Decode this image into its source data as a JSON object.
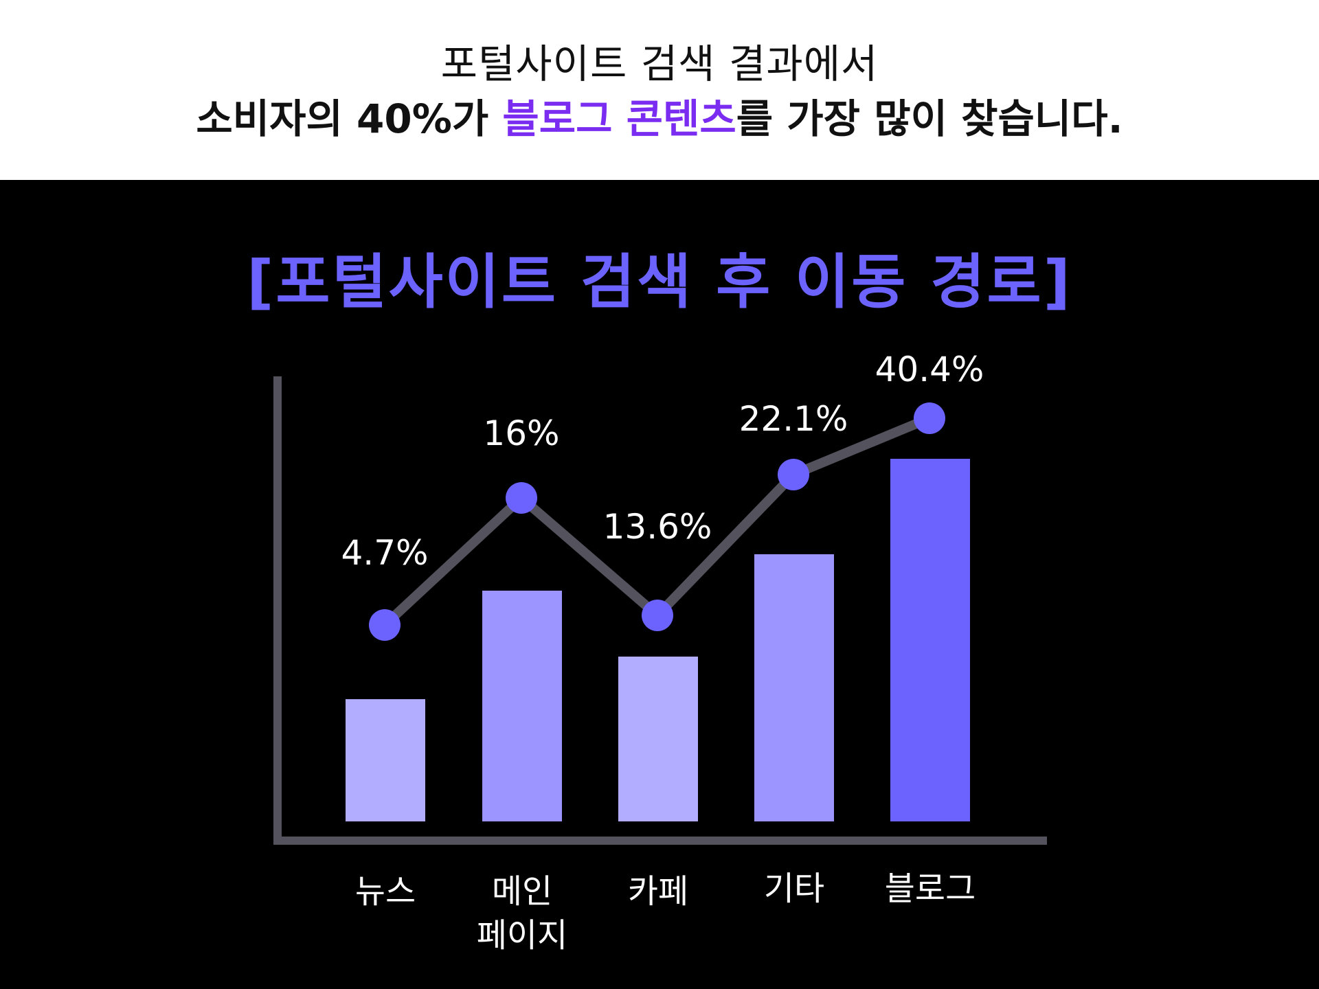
{
  "headline": {
    "line1": "포털사이트 검색 결과에서",
    "line2_pre": "소비자의 40%가 ",
    "line2_highlight": "블로그 콘텐츠",
    "line2_post": "를 가장 많이 찾습니다."
  },
  "colors": {
    "highlight": "#7a2cf0",
    "title": "#6c63ff",
    "bar_light": "#b3adff",
    "bar_mid": "#9c94ff",
    "bar_strong": "#6c63ff",
    "line": "#54525d",
    "point": "#6c63ff",
    "axis": "#54525d"
  },
  "chart_data": {
    "type": "bar+line",
    "title": "[포털사이트 검색 후 이동 경로]",
    "categories": [
      "뉴스",
      "메인\n페이지",
      "카페",
      "기타",
      "블로그"
    ],
    "category_lines": [
      [
        "뉴스"
      ],
      [
        "메인",
        "페이지"
      ],
      [
        "카페"
      ],
      [
        "기타"
      ],
      [
        "블로그"
      ]
    ],
    "values": [
      4.7,
      16,
      13.6,
      22.1,
      40.4
    ],
    "value_labels": [
      "4.7%",
      "16%",
      "13.6%",
      "22.1%",
      "40.4%"
    ],
    "unit": "%",
    "bar_colors": [
      "#b3adff",
      "#9c94ff",
      "#b3adff",
      "#9c94ff",
      "#6c63ff"
    ],
    "show_y_tick_labels": false,
    "grid": false,
    "legend": "none"
  }
}
